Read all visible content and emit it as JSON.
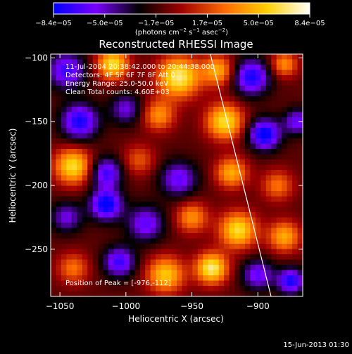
{
  "colorbar": {
    "ticks": [
      "−8.4e−05",
      "−5.0e−05",
      "−1.7e−05",
      "1.7e−05",
      "5.0e−05",
      "8.4e−05"
    ],
    "units_base": "(photons cm",
    "units_exp1": "−2",
    "units_mid": " s",
    "units_exp2": "−1",
    "units_mid2": " asec",
    "units_exp3": "−2",
    "units_end": ")",
    "colors": [
      "#0000ff",
      "#7a00ff",
      "#000000",
      "#a00000",
      "#ff6a00",
      "#ffd000",
      "#ffffff"
    ]
  },
  "title": "Reconstructed RHESSI Image",
  "annotations": {
    "line1": "11-Jul-2004 20:38:42.000 to 20:44:38.000",
    "line2": "Detectors: 4F 5F 6F 7F 8F  Att 0",
    "line3": "Energy Range: 25.0-50.0 keV",
    "line4": "Clean     Total counts: 4.60E+03",
    "peak": "Position of Peak = [-976,-112]"
  },
  "footer": {
    "timestamp": "15-Jun-2013 01:30"
  },
  "chart_data": {
    "type": "heatmap",
    "title": "Reconstructed RHESSI Image",
    "xlabel": "Heliocentric X (arcsec)",
    "ylabel": "Heliocentric Y (arcsec)",
    "xlim": [
      -1057,
      -866
    ],
    "ylim": [
      -287,
      -97
    ],
    "xticks": [
      -1050,
      -1000,
      -950,
      -900
    ],
    "yticks": [
      -100,
      -150,
      -200,
      -250
    ],
    "xtick_labels": [
      "−1050",
      "−1000",
      "−950",
      "−900"
    ],
    "ytick_labels": [
      "−100",
      "−150",
      "−200",
      "−250"
    ],
    "value_range": [
      -8.4e-05,
      8.4e-05
    ],
    "peak_position": [
      -976,
      -112
    ],
    "limb_line": [
      [
        -936,
        -97
      ],
      [
        -890,
        -287
      ]
    ],
    "grid": false,
    "blobs": [
      {
        "x": -1045,
        "y": -110,
        "v": -0.7,
        "r": 14
      },
      {
        "x": -1010,
        "y": -105,
        "v": 0.9,
        "r": 12
      },
      {
        "x": -960,
        "y": -115,
        "v": 1.0,
        "r": 16
      },
      {
        "x": -930,
        "y": -110,
        "v": 0.7,
        "r": 12
      },
      {
        "x": -905,
        "y": -115,
        "v": -0.8,
        "r": 14
      },
      {
        "x": -880,
        "y": -105,
        "v": 0.6,
        "r": 10
      },
      {
        "x": -1035,
        "y": -150,
        "v": -0.8,
        "r": 14
      },
      {
        "x": -1000,
        "y": -140,
        "v": -0.5,
        "r": 12
      },
      {
        "x": -975,
        "y": -145,
        "v": 0.6,
        "r": 12
      },
      {
        "x": -925,
        "y": -150,
        "v": 0.9,
        "r": 14
      },
      {
        "x": -895,
        "y": -160,
        "v": -0.9,
        "r": 12
      },
      {
        "x": -870,
        "y": -150,
        "v": -0.6,
        "r": 10
      },
      {
        "x": -1040,
        "y": -185,
        "v": 0.9,
        "r": 14
      },
      {
        "x": -1015,
        "y": -190,
        "v": -0.7,
        "r": 12
      },
      {
        "x": -990,
        "y": -180,
        "v": 0.4,
        "r": 12
      },
      {
        "x": -960,
        "y": -195,
        "v": -0.6,
        "r": 14
      },
      {
        "x": -920,
        "y": -190,
        "v": 0.7,
        "r": 12
      },
      {
        "x": -885,
        "y": -200,
        "v": 0.5,
        "r": 12
      },
      {
        "x": -1045,
        "y": -225,
        "v": -0.5,
        "r": 12
      },
      {
        "x": -1015,
        "y": -215,
        "v": -0.9,
        "r": 12
      },
      {
        "x": -985,
        "y": -230,
        "v": -0.6,
        "r": 14
      },
      {
        "x": -950,
        "y": -225,
        "v": 0.6,
        "r": 12
      },
      {
        "x": -915,
        "y": -235,
        "v": 0.9,
        "r": 14
      },
      {
        "x": -880,
        "y": -240,
        "v": 0.7,
        "r": 12
      },
      {
        "x": -1040,
        "y": -265,
        "v": 0.5,
        "r": 12
      },
      {
        "x": -1005,
        "y": -260,
        "v": -0.7,
        "r": 12
      },
      {
        "x": -970,
        "y": -270,
        "v": 0.8,
        "r": 14
      },
      {
        "x": -935,
        "y": -265,
        "v": 1.0,
        "r": 12
      },
      {
        "x": -900,
        "y": -270,
        "v": -0.6,
        "r": 12
      },
      {
        "x": -875,
        "y": -275,
        "v": -0.8,
        "r": 10
      }
    ]
  }
}
